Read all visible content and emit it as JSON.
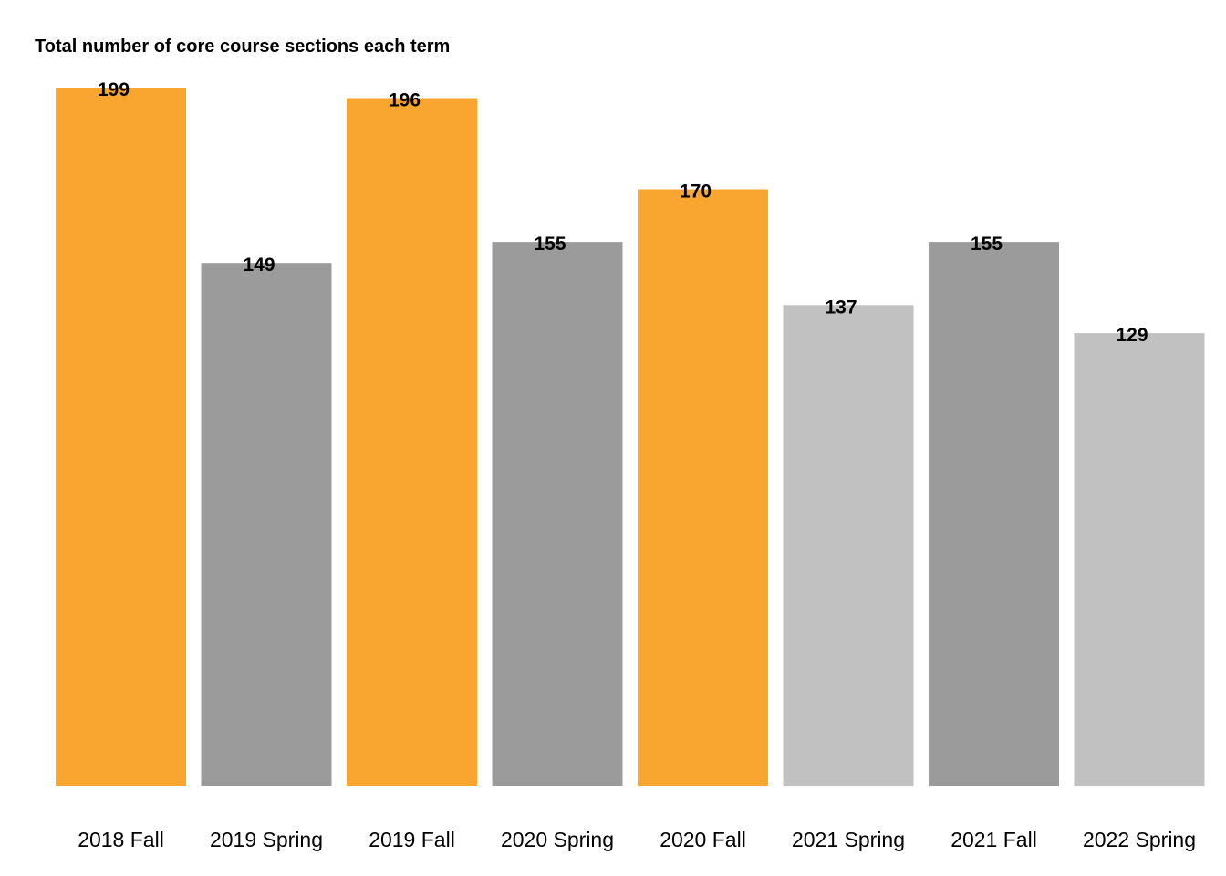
{
  "chart_data": {
    "type": "bar",
    "title": "Total number of core course sections each term",
    "xlabel": "",
    "ylabel": "",
    "categories": [
      "2018 Fall",
      "2019 Spring",
      "2019 Fall",
      "2020 Spring",
      "2020 Fall",
      "2021 Spring",
      "2021 Fall",
      "2022 Spring"
    ],
    "values": [
      199,
      149,
      196,
      155,
      170,
      137,
      155,
      129
    ],
    "bar_colors": [
      "#f9a630",
      "#9b9b9b",
      "#f9a630",
      "#9b9b9b",
      "#f9a630",
      "#c1c1c1",
      "#9b9b9b",
      "#c1c1c1"
    ],
    "ylim": [
      0,
      199
    ],
    "grid": false,
    "legend": "none",
    "data_labels": true
  }
}
